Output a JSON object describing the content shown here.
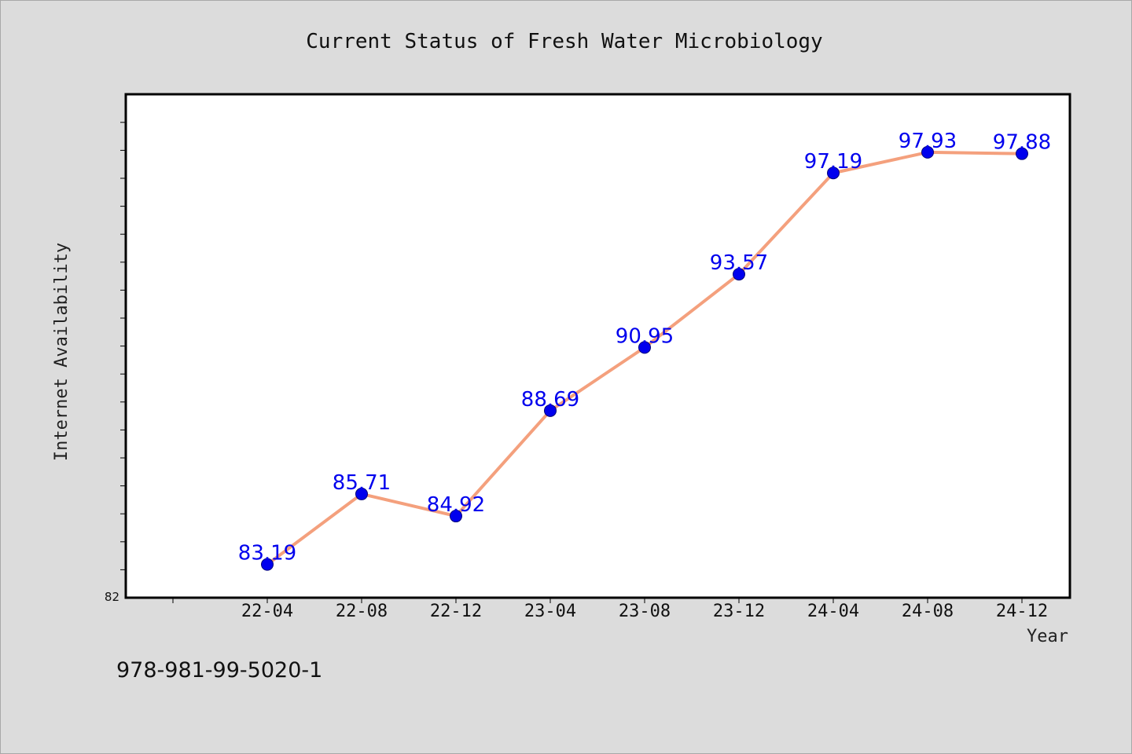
{
  "chart_data": {
    "type": "line",
    "title": "Current Status of Fresh Water Microbiology",
    "xlabel": "Year",
    "ylabel": "Internet Availability",
    "categories": [
      "22-04",
      "22-08",
      "22-12",
      "23-04",
      "23-08",
      "23-12",
      "24-04",
      "24-08",
      "24-12"
    ],
    "series": [
      {
        "values": [
          83.19,
          85.71,
          84.92,
          88.69,
          90.95,
          93.57,
          97.19,
          97.93,
          97.88
        ],
        "line_color": "#f4a07d",
        "marker_color": "#0000ee",
        "data_label_color": "#0000ee"
      }
    ],
    "ylim": [
      82,
      100
    ],
    "y_tick_labels_shown": [
      "82"
    ],
    "grid": false,
    "legend": "none"
  },
  "footer": {
    "text": "978-981-99-5020-1"
  },
  "colors": {
    "background": "#dcdcdc",
    "plot_area": "#ffffff"
  }
}
